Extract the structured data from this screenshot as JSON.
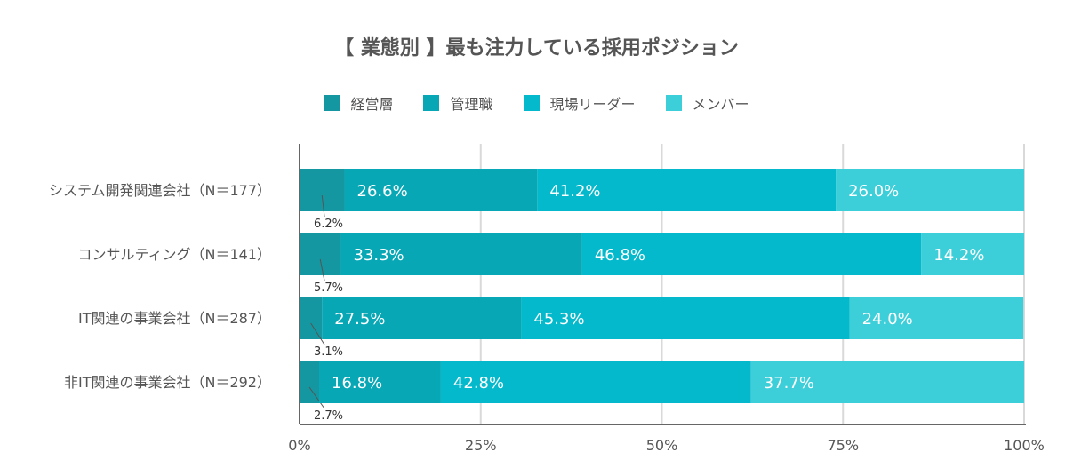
{
  "chart_data": {
    "type": "bar",
    "orientation": "horizontal",
    "stacked": true,
    "title": "【 業態別 】最も注力している採用ポジション",
    "legend_position": "top",
    "categories": [
      "システム開発関連会社（N＝177）",
      "コンサルティング（N＝141）",
      "IT関連の事業会社（N＝287）",
      "非IT関連の事業会社（N＝292）"
    ],
    "series": [
      {
        "name": "経営層",
        "values": [
          6.2,
          5.7,
          3.1,
          2.7
        ],
        "labels": [
          "6.2%",
          "5.7%",
          "3.1%",
          "2.7%"
        ],
        "color": "#1497a0"
      },
      {
        "name": "管理職",
        "values": [
          26.6,
          33.3,
          27.5,
          16.8
        ],
        "labels": [
          "26.6%",
          "33.3%",
          "27.5%",
          "16.8%"
        ],
        "color": "#08a7b6"
      },
      {
        "name": "現場リーダー",
        "values": [
          41.2,
          46.8,
          45.3,
          42.8
        ],
        "labels": [
          "41.2%",
          "46.8%",
          "45.3%",
          "42.8%"
        ],
        "color": "#04b9cc"
      },
      {
        "name": "メンバー",
        "values": [
          26.0,
          14.2,
          24.0,
          37.7
        ],
        "labels": [
          "26.0%",
          "14.2%",
          "24.0%",
          "37.7%"
        ],
        "color": "#3ccfd9"
      }
    ],
    "x_ticks": [
      "0%",
      "25%",
      "50%",
      "75%",
      "100%"
    ],
    "xlim": [
      0,
      100
    ],
    "grid": true
  }
}
